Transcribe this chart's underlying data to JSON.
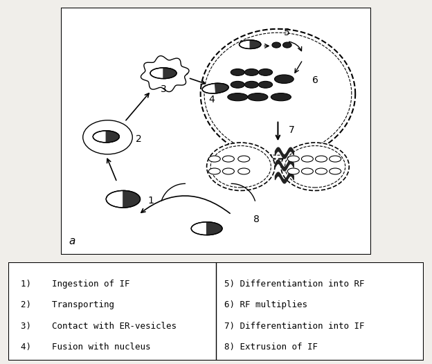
{
  "legend_left": [
    "1)    Ingestion of IF",
    "2)    Transporting",
    "3)    Contact with ER-vesicles",
    "4)    Fusion with nucleus"
  ],
  "legend_right": [
    "5) Differentiantion into RF",
    "6) RF multiplies",
    "7) Differentiantion into IF",
    "8) Extrusion of IF"
  ],
  "bg_color": "#f0eeea",
  "diagram_bg": "#ffffff",
  "border_color": "#000000",
  "label_a": "a",
  "font_size_legend": 9,
  "font_size_label": 10
}
